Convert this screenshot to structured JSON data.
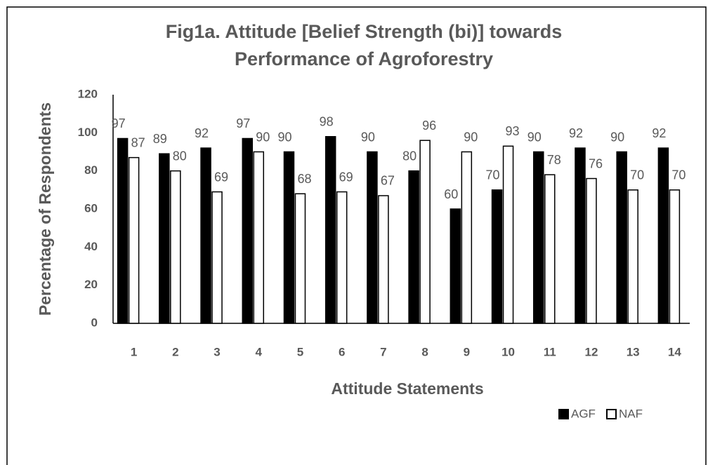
{
  "chart_data": {
    "type": "bar",
    "title": [
      "Fig1a. Attitude [Belief Strength (bi)] towards",
      "Performance of Agroforestry"
    ],
    "x_label": "Attitude Statements",
    "y_label": "Percentage of Respondents",
    "categories": [
      "1",
      "2",
      "3",
      "4",
      "5",
      "6",
      "7",
      "8",
      "9",
      "10",
      "11",
      "12",
      "13",
      "14"
    ],
    "series": [
      {
        "name": "AGF",
        "color": "#000000",
        "values": [
          97,
          89,
          92,
          97,
          90,
          98,
          90,
          80,
          60,
          70,
          90,
          92,
          90,
          92
        ]
      },
      {
        "name": "NAF",
        "color": "#ffffff",
        "values": [
          87,
          80,
          69,
          90,
          68,
          69,
          67,
          96,
          90,
          93,
          78,
          76,
          70,
          70
        ]
      }
    ],
    "ylim": [
      0,
      120
    ],
    "yticks": [
      0,
      20,
      40,
      60,
      80,
      100,
      120
    ],
    "legend": "bottom-right",
    "grid": false
  }
}
